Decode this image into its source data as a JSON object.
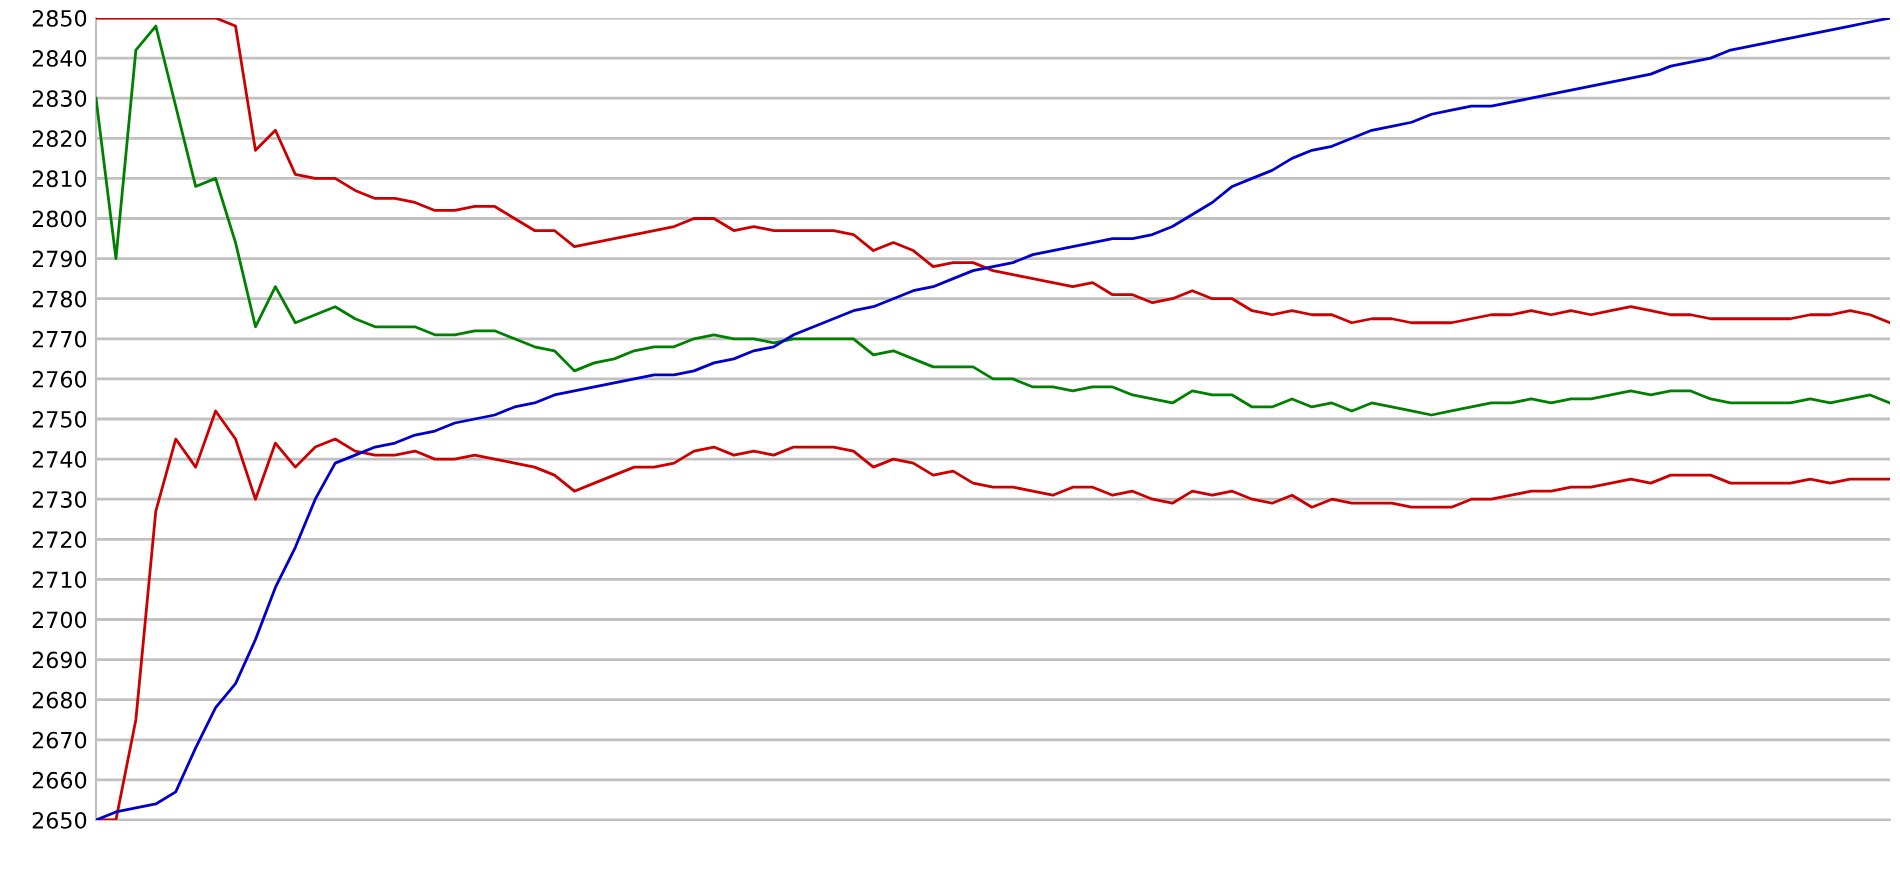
{
  "chart_data": {
    "type": "line",
    "categories": [
      null,
      null,
      null,
      null,
      null,
      null,
      null,
      null,
      null,
      null,
      null,
      null,
      null,
      null,
      null,
      null,
      null,
      null,
      null,
      null,
      null,
      null,
      null,
      null,
      null,
      null,
      null,
      null,
      null,
      null,
      null,
      null,
      null,
      null,
      null,
      null,
      null,
      null,
      null,
      null,
      null,
      null,
      null,
      null,
      null,
      null,
      null,
      null,
      null,
      null,
      null,
      null,
      null,
      null,
      null,
      null,
      null,
      null,
      null,
      null,
      null,
      null,
      null,
      null,
      null,
      null,
      null,
      null,
      null,
      null,
      null,
      null,
      null,
      null,
      null,
      null,
      null,
      null,
      null,
      null,
      null,
      null,
      null,
      null,
      null,
      null,
      null,
      null,
      null,
      null,
      null
    ],
    "series": [
      {
        "color": "#cc0000",
        "values": [
          2850,
          2850,
          2850,
          2850,
          2850,
          2850,
          2850,
          2848,
          2817,
          2822,
          2811,
          2810,
          2810,
          2807,
          2805,
          2805,
          2804,
          2802,
          2802,
          2803,
          2803,
          2800,
          2797,
          2797,
          2793,
          2794,
          2795,
          2796,
          2797,
          2798,
          2800,
          2800,
          2797,
          2798,
          2797,
          2797,
          2797,
          2797,
          2796,
          2792,
          2794,
          2792,
          2788,
          2789,
          2789,
          2787,
          2786,
          2785,
          2784,
          2783,
          2784,
          2781,
          2781,
          2779,
          2780,
          2782,
          2780,
          2780,
          2777,
          2776,
          2777,
          2776,
          2776,
          2774,
          2775,
          2775,
          2774,
          2774,
          2774,
          2775,
          2776,
          2776,
          2777,
          2776,
          2777,
          2776,
          2777,
          2778,
          2777,
          2776,
          2776,
          2775,
          2775,
          2775,
          2775,
          2775,
          2776,
          2776,
          2777,
          2776,
          2774
        ]
      },
      {
        "color": "#008000",
        "values": [
          2830,
          2790,
          2842,
          2848,
          2828,
          2808,
          2810,
          2794,
          2773,
          2783,
          2774,
          2776,
          2778,
          2775,
          2773,
          2773,
          2773,
          2771,
          2771,
          2772,
          2772,
          2770,
          2768,
          2767,
          2762,
          2764,
          2765,
          2767,
          2768,
          2768,
          2770,
          2771,
          2770,
          2770,
          2769,
          2770,
          2770,
          2770,
          2770,
          2766,
          2767,
          2765,
          2763,
          2763,
          2763,
          2760,
          2760,
          2758,
          2758,
          2757,
          2758,
          2758,
          2756,
          2755,
          2754,
          2757,
          2756,
          2756,
          2753,
          2753,
          2755,
          2753,
          2754,
          2752,
          2754,
          2753,
          2752,
          2751,
          2752,
          2753,
          2754,
          2754,
          2755,
          2754,
          2755,
          2755,
          2756,
          2757,
          2756,
          2757,
          2757,
          2755,
          2754,
          2754,
          2754,
          2754,
          2755,
          2754,
          2755,
          2756,
          2754
        ]
      },
      {
        "color": "#cc0000",
        "values": [
          2650,
          2650,
          2675,
          2727,
          2745,
          2738,
          2752,
          2745,
          2730,
          2744,
          2738,
          2743,
          2745,
          2742,
          2741,
          2741,
          2742,
          2740,
          2740,
          2741,
          2740,
          2739,
          2738,
          2736,
          2732,
          2734,
          2736,
          2738,
          2738,
          2739,
          2742,
          2743,
          2741,
          2742,
          2741,
          2743,
          2743,
          2743,
          2742,
          2738,
          2740,
          2739,
          2736,
          2737,
          2734,
          2733,
          2733,
          2732,
          2731,
          2733,
          2733,
          2731,
          2732,
          2730,
          2729,
          2732,
          2731,
          2732,
          2730,
          2729,
          2731,
          2728,
          2730,
          2729,
          2729,
          2729,
          2728,
          2728,
          2728,
          2730,
          2730,
          2731,
          2732,
          2732,
          2733,
          2733,
          2734,
          2735,
          2734,
          2736,
          2736,
          2736,
          2734,
          2734,
          2734,
          2734,
          2735,
          2734,
          2735,
          2735,
          2735
        ]
      },
      {
        "color": "#0000cc",
        "values": [
          2650,
          2652,
          2653,
          2654,
          2657,
          2668,
          2678,
          2684,
          2695,
          2708,
          2718,
          2730,
          2739,
          2741,
          2743,
          2744,
          2746,
          2747,
          2749,
          2750,
          2751,
          2753,
          2754,
          2756,
          2757,
          2758,
          2759,
          2760,
          2761,
          2761,
          2762,
          2764,
          2765,
          2767,
          2768,
          2771,
          2773,
          2775,
          2777,
          2778,
          2780,
          2782,
          2783,
          2785,
          2787,
          2788,
          2789,
          2791,
          2792,
          2793,
          2794,
          2795,
          2795,
          2796,
          2798,
          2801,
          2804,
          2808,
          2810,
          2812,
          2815,
          2817,
          2818,
          2820,
          2822,
          2823,
          2824,
          2826,
          2827,
          2828,
          2828,
          2829,
          2830,
          2831,
          2832,
          2833,
          2834,
          2835,
          2836,
          2838,
          2839,
          2840,
          2842,
          2843,
          2844,
          2845,
          2846,
          2847,
          2848,
          2849,
          2850
        ]
      }
    ],
    "ylim": [
      2650,
      2850
    ],
    "yticks": [
      2650,
      2660,
      2670,
      2680,
      2690,
      2700,
      2710,
      2720,
      2730,
      2740,
      2750,
      2760,
      2770,
      2780,
      2790,
      2800,
      2810,
      2820,
      2830,
      2840,
      2850
    ],
    "grid": "y",
    "tick_labels": "y",
    "marker": "none",
    "line_style": "solid"
  }
}
